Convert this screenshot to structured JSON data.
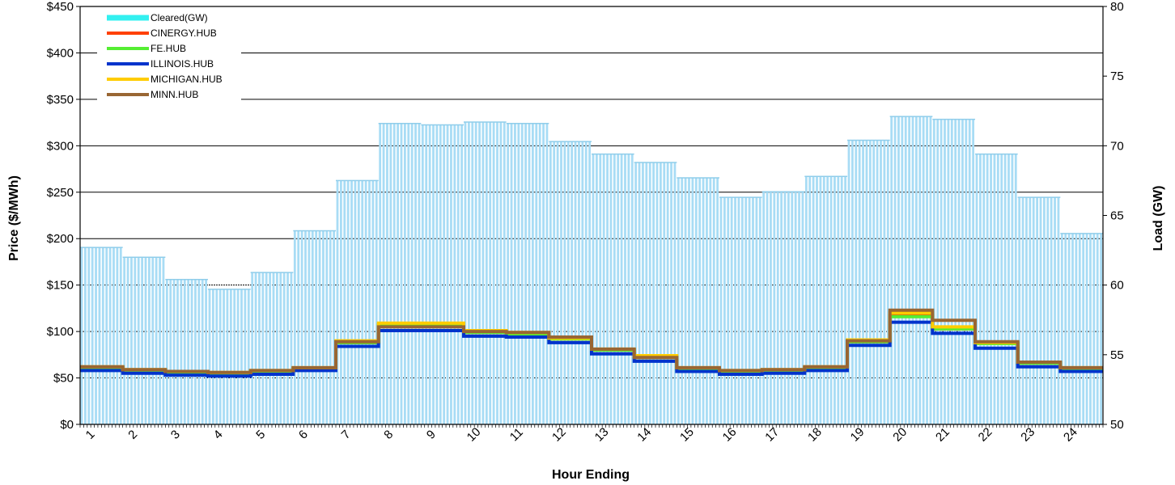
{
  "chart_data": {
    "type": "bar+line",
    "title": "",
    "xlabel": "Hour Ending",
    "ylabel_left": "Price ($/MWh)",
    "ylabel_right": "Load (GW)",
    "categories": [
      "1",
      "2",
      "3",
      "4",
      "5",
      "6",
      "7",
      "8",
      "9",
      "10",
      "11",
      "12",
      "13",
      "14",
      "15",
      "16",
      "17",
      "18",
      "19",
      "20",
      "21",
      "22",
      "23",
      "24"
    ],
    "y_left": {
      "min": 0,
      "max": 450,
      "ticks": [
        "$0",
        "$50",
        "$100",
        "$150",
        "$200",
        "$250",
        "$300",
        "$350",
        "$400",
        "$450"
      ],
      "tick_values": [
        0,
        50,
        100,
        150,
        200,
        250,
        300,
        350,
        400,
        450
      ]
    },
    "y_right": {
      "min": 50,
      "max": 80,
      "ticks": [
        "50",
        "55",
        "60",
        "65",
        "70",
        "75",
        "80"
      ],
      "tick_values": [
        50,
        55,
        60,
        65,
        70,
        75,
        80
      ]
    },
    "grid": true,
    "legend_position": "top-left",
    "load_series": {
      "name": "Cleared(GW)",
      "color": "#a8dcf5",
      "legend_color": "#33f0f0",
      "values": [
        62.7,
        62.0,
        60.4,
        59.7,
        60.9,
        63.9,
        67.5,
        71.6,
        71.5,
        71.7,
        71.6,
        70.3,
        69.4,
        68.8,
        67.7,
        66.3,
        66.7,
        67.8,
        70.4,
        72.1,
        71.9,
        69.4,
        66.3,
        63.7
      ]
    },
    "series": [
      {
        "name": "CINERGY.HUB",
        "color": "#ff4000",
        "values": [
          61,
          58,
          56,
          55,
          57,
          60,
          88,
          107,
          107,
          99,
          97,
          92,
          80,
          72,
          60,
          57,
          58,
          61,
          89,
          117,
          103,
          87,
          66,
          60
        ]
      },
      {
        "name": "FE.HUB",
        "color": "#55ee33",
        "values": [
          61,
          58,
          56,
          55,
          57,
          60,
          88,
          107,
          107,
          99,
          97,
          92,
          80,
          72,
          60,
          57,
          58,
          61,
          89,
          116,
          103,
          87,
          66,
          60
        ]
      },
      {
        "name": "ILLINOIS.HUB",
        "color": "#0033cc",
        "values": [
          58,
          55,
          53,
          52,
          54,
          58,
          84,
          101,
          101,
          95,
          94,
          88,
          76,
          68,
          57,
          54,
          55,
          58,
          85,
          110,
          98,
          82,
          62,
          57
        ]
      },
      {
        "name": "MICHIGAN.HUB",
        "color": "#ffcc00",
        "values": [
          62,
          59,
          57,
          56,
          58,
          61,
          90,
          109,
          109,
          101,
          99,
          93,
          81,
          74,
          61,
          58,
          59,
          62,
          91,
          120,
          105,
          88,
          67,
          61
        ]
      },
      {
        "name": "MINN.HUB",
        "color": "#996633",
        "values": [
          62,
          59,
          57,
          56,
          58,
          61,
          89,
          105,
          105,
          100,
          99,
          94,
          81,
          72,
          61,
          58,
          59,
          62,
          90,
          123,
          112,
          89,
          67,
          61
        ]
      }
    ]
  }
}
